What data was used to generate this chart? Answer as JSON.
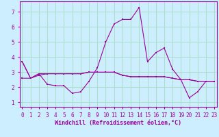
{
  "xlabel": "Windchill (Refroidissement éolien,°C)",
  "ylabel": "",
  "bg_color": "#cceeff",
  "grid_color": "#aaddcc",
  "line_color": "#990099",
  "x_ticks": [
    0,
    1,
    2,
    3,
    4,
    5,
    6,
    7,
    8,
    9,
    10,
    11,
    12,
    13,
    14,
    15,
    16,
    17,
    18,
    19,
    20,
    21,
    22,
    23
  ],
  "y_ticks": [
    1,
    2,
    3,
    4,
    5,
    6,
    7
  ],
  "ylim": [
    0.7,
    7.7
  ],
  "xlim": [
    -0.3,
    23.3
  ],
  "series1_x": [
    0,
    1,
    2,
    3,
    4,
    5,
    6,
    7,
    8,
    9,
    10,
    11,
    12,
    13,
    14,
    15,
    16,
    17,
    18,
    19,
    20,
    21,
    22,
    23
  ],
  "series1_y": [
    3.7,
    2.6,
    2.9,
    2.2,
    2.1,
    2.1,
    1.6,
    1.7,
    2.4,
    3.3,
    5.0,
    6.2,
    6.5,
    6.5,
    7.3,
    3.7,
    4.3,
    4.6,
    3.2,
    2.5,
    1.3,
    1.7,
    2.4,
    2.4
  ],
  "series2_x": [
    0,
    1,
    2,
    3,
    4,
    5,
    6,
    7,
    8,
    9,
    10,
    11,
    12,
    13,
    14,
    15,
    16,
    17,
    18,
    19,
    20,
    21,
    22,
    23
  ],
  "series2_y": [
    3.7,
    2.6,
    2.9,
    2.9,
    2.9,
    2.9,
    2.9,
    2.9,
    3.0,
    3.0,
    3.0,
    3.0,
    2.8,
    2.7,
    2.7,
    2.7,
    2.7,
    2.7,
    2.6,
    2.5,
    2.5,
    2.4,
    2.4,
    2.4
  ],
  "series3_x": [
    0,
    1,
    2,
    3,
    4,
    5,
    6,
    7,
    8,
    9,
    10,
    11,
    12,
    13,
    14,
    15,
    16,
    17,
    18,
    19,
    20,
    21,
    22,
    23
  ],
  "series3_y": [
    2.6,
    2.6,
    2.8,
    2.9,
    2.9,
    2.9,
    2.9,
    2.9,
    3.0,
    3.0,
    3.0,
    3.0,
    2.8,
    2.7,
    2.7,
    2.7,
    2.7,
    2.7,
    2.6,
    2.5,
    2.5,
    2.4,
    2.4,
    2.4
  ],
  "fontsize_label": 6,
  "fontsize_tick": 5.5
}
